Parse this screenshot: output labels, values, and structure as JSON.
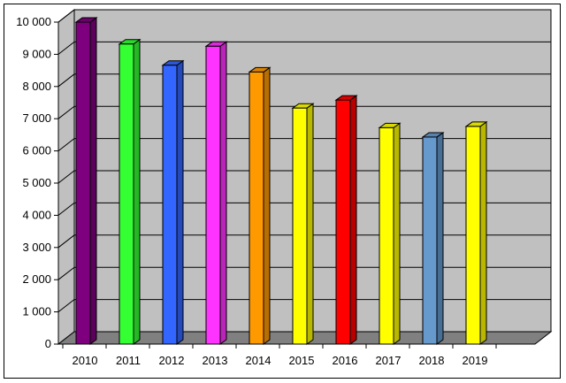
{
  "chart_data": {
    "type": "bar",
    "title": "",
    "xlabel": "",
    "ylabel": "",
    "categories": [
      "2010",
      "2011",
      "2012",
      "2013",
      "2014",
      "2015",
      "2016",
      "2017",
      "2018",
      "2019"
    ],
    "values": [
      10000,
      9320,
      8660,
      9250,
      8450,
      7330,
      7580,
      6720,
      6430,
      6760
    ],
    "bar_colors": [
      "#7f007f",
      "#33ff33",
      "#3366ff",
      "#ff33ff",
      "#ff9900",
      "#ffff00",
      "#ff0000",
      "#ffff00",
      "#6699cc",
      "#ffff00"
    ],
    "ylim": [
      0,
      10000
    ],
    "yticks": [
      0,
      1000,
      2000,
      3000,
      4000,
      5000,
      6000,
      7000,
      8000,
      9000,
      10000
    ],
    "ytick_labels": [
      "0",
      "1 000",
      "2 000",
      "3 000",
      "4 000",
      "5 000",
      "6 000",
      "7 000",
      "8 000",
      "9 000",
      "10 000"
    ],
    "grid": true,
    "legend": "none",
    "style": "3d",
    "plot_background": "#c0c0c0",
    "floor_color": "#808080"
  }
}
